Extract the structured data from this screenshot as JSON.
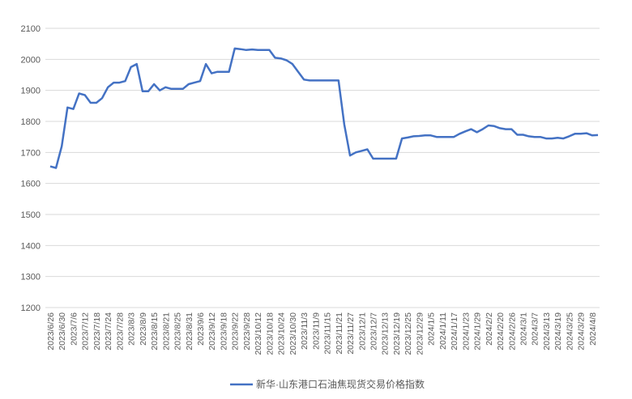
{
  "chart_data": {
    "type": "line",
    "categories": [
      "2023/6/26",
      null,
      "2023/6/30",
      null,
      "2023/7/6",
      null,
      "2023/7/12",
      null,
      "2023/7/18",
      null,
      "2023/7/24",
      null,
      "2023/7/28",
      null,
      "2023/8/3",
      null,
      "2023/8/9",
      null,
      "2023/8/15",
      null,
      "2023/8/21",
      null,
      "2023/8/25",
      null,
      "2023/8/31",
      null,
      "2023/9/6",
      null,
      "2023/9/12",
      null,
      "2023/9/18",
      null,
      "2023/9/22",
      null,
      "2023/9/28",
      null,
      "2023/10/12",
      null,
      "2023/10/18",
      null,
      "2023/10/24",
      null,
      "2023/10/30",
      null,
      "2023/11/3",
      null,
      "2023/11/9",
      null,
      "2023/11/15",
      null,
      "2023/11/21",
      null,
      "2023/11/27",
      null,
      "2023/12/1",
      null,
      "2023/12/7",
      null,
      "2023/12/13",
      null,
      "2023/12/19",
      null,
      "2023/12/25",
      null,
      "2023/12/29",
      null,
      "2024/1/5",
      null,
      "2024/1/11",
      null,
      "2024/1/17",
      null,
      "2024/1/23",
      null,
      "2024/1/29",
      null,
      "2024/2/2",
      null,
      "2024/2/20",
      null,
      "2024/2/26",
      null,
      "2024/3/1",
      null,
      "2024/3/7",
      null,
      "2024/3/13",
      null,
      "2024/3/19",
      null,
      "2024/3/25",
      null,
      "2024/3/29",
      null,
      "2024/4/8",
      null
    ],
    "series": [
      {
        "name": "新华·山东港口石油焦现货交易价格指数",
        "color": "#4472c4",
        "values": [
          1655,
          1650,
          1720,
          1845,
          1840,
          1890,
          1885,
          1860,
          1860,
          1875,
          1910,
          1925,
          1925,
          1930,
          1975,
          1985,
          1897,
          1897,
          1920,
          1900,
          1910,
          1905,
          1905,
          1905,
          1920,
          1925,
          1930,
          1985,
          1955,
          1960,
          1960,
          1960,
          2035,
          2033,
          2030,
          2032,
          2030,
          2030,
          2030,
          2005,
          2003,
          1997,
          1985,
          1960,
          1935,
          1932,
          1932,
          1932,
          1932,
          1932,
          1932,
          1790,
          1690,
          1700,
          1705,
          1710,
          1680,
          1680,
          1680,
          1680,
          1680,
          1745,
          1748,
          1752,
          1753,
          1755,
          1755,
          1750,
          1750,
          1750,
          1750,
          1760,
          1768,
          1775,
          1765,
          1775,
          1787,
          1785,
          1778,
          1775,
          1775,
          1757,
          1757,
          1752,
          1750,
          1750,
          1745,
          1745,
          1747,
          1745,
          1752,
          1760,
          1760,
          1762,
          1755,
          1756
        ]
      }
    ],
    "ylim": [
      1200,
      2100
    ],
    "yticks": [
      1200,
      1300,
      1400,
      1500,
      1600,
      1700,
      1800,
      1900,
      2000,
      2100
    ],
    "grid": true,
    "legend": "bottom"
  }
}
